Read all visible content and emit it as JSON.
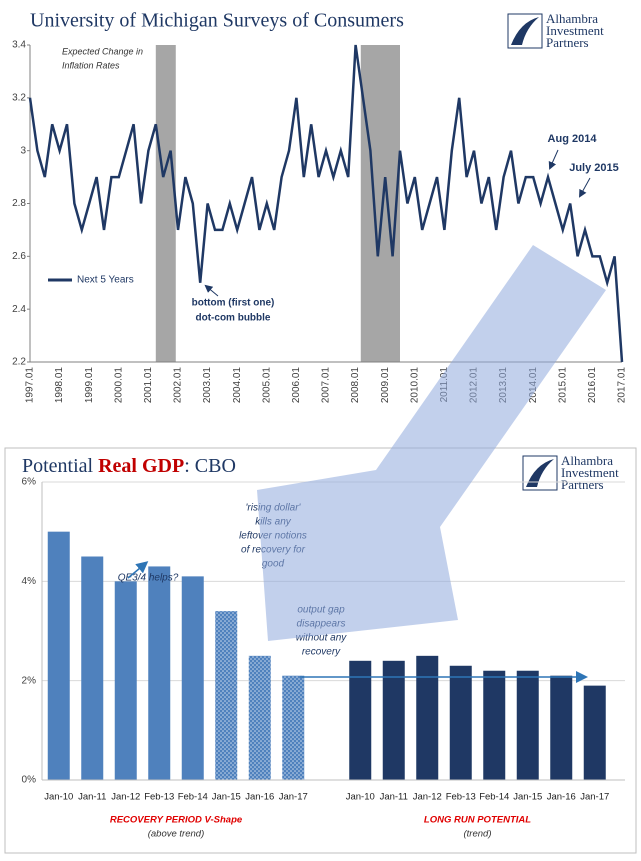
{
  "chart_data": [
    {
      "type": "line",
      "title": "University of Michigan Surveys of Consumers",
      "logo": [
        "Alhambra",
        "Investment",
        "Partners"
      ],
      "annotations": [
        "Expected Change in",
        "Inflation Rates",
        "bottom (first one)",
        "dot-com bubble",
        "Aug 2014",
        "July 2015"
      ],
      "categories": [
        "1997.01",
        null,
        null,
        null,
        "1998.01",
        null,
        null,
        null,
        "1999.01",
        null,
        null,
        null,
        "2000.01",
        null,
        null,
        null,
        "2001.01",
        null,
        null,
        null,
        "2002.01",
        null,
        null,
        null,
        "2003.01",
        null,
        null,
        null,
        "2004.01",
        null,
        null,
        null,
        "2005.01",
        null,
        null,
        null,
        "2006.01",
        null,
        null,
        null,
        "2007.01",
        null,
        null,
        null,
        "2008.01",
        null,
        null,
        null,
        "2009.01",
        null,
        null,
        null,
        "2010.01",
        null,
        null,
        null,
        "2011.01",
        null,
        null,
        null,
        "2012.01",
        null,
        null,
        null,
        "2013.01",
        null,
        null,
        null,
        "2014.01",
        null,
        null,
        null,
        "2015.01",
        null,
        null,
        null,
        "2016.01",
        null,
        null,
        null,
        "2017.01"
      ],
      "series": [
        {
          "name": "Next 5 Years",
          "color": "#1f3864",
          "values": [
            3.2,
            3.0,
            2.9,
            3.1,
            3.0,
            3.1,
            2.8,
            2.7,
            2.8,
            2.9,
            2.7,
            2.9,
            2.9,
            3.0,
            3.1,
            2.8,
            3.0,
            3.1,
            2.9,
            3.0,
            2.7,
            2.9,
            2.8,
            2.5,
            2.8,
            2.7,
            2.7,
            2.8,
            2.7,
            2.8,
            2.9,
            2.7,
            2.8,
            2.7,
            2.9,
            3.0,
            3.2,
            2.9,
            3.1,
            2.9,
            3.0,
            2.9,
            3.0,
            2.9,
            3.4,
            3.2,
            3.0,
            2.6,
            2.9,
            2.6,
            3.0,
            2.8,
            2.9,
            2.7,
            2.8,
            2.9,
            2.7,
            3.0,
            3.2,
            2.9,
            3.0,
            2.8,
            2.9,
            2.7,
            2.9,
            3.0,
            2.8,
            2.9,
            2.9,
            2.8,
            2.9,
            2.8,
            2.7,
            2.8,
            2.6,
            2.7,
            2.6,
            2.6,
            2.5,
            2.6,
            2.2
          ]
        }
      ],
      "shaded_index_ranges": [
        [
          17,
          19.7
        ],
        [
          44.7,
          50
        ]
      ],
      "shade_color": "#a6a6a6",
      "ylim": [
        2.2,
        3.4
      ],
      "yticks": [
        2.2,
        2.4,
        2.6,
        2.8,
        3.0,
        3.2,
        3.4
      ]
    },
    {
      "type": "bar",
      "title": [
        "Potential ",
        "Real GDP",
        ": CBO"
      ],
      "logo": [
        "Alhambra",
        "Investment",
        "Partners"
      ],
      "annotations": [
        [
          "QE3/4 helps?"
        ],
        [
          "'rising dollar'",
          "kills any",
          "leftover notions",
          "of recovery for",
          "good"
        ],
        [
          "output gap",
          "disappears",
          "without any",
          "recovery"
        ]
      ],
      "groups": [
        {
          "label": "RECOVERY PERIOD V-Shape",
          "sublabel": "(above trend)",
          "color": "#4f81bd",
          "categories": [
            "Jan-10",
            "Jan-11",
            "Jan-12",
            "Feb-13",
            "Feb-14",
            "Jan-15",
            "Jan-16",
            "Jan-17"
          ],
          "values": [
            5.0,
            4.5,
            4.0,
            4.3,
            4.1,
            3.4,
            2.5,
            2.1
          ],
          "dotted": [
            false,
            false,
            false,
            false,
            false,
            true,
            true,
            true
          ]
        },
        {
          "label": "LONG RUN POTENTIAL",
          "sublabel": "(trend)",
          "color": "#1f3864",
          "categories": [
            "Jan-10",
            "Jan-11",
            "Jan-12",
            "Feb-13",
            "Feb-14",
            "Jan-15",
            "Jan-16",
            "Jan-17"
          ],
          "values": [
            2.4,
            2.4,
            2.5,
            2.3,
            2.2,
            2.2,
            2.1,
            1.9
          ],
          "dotted": [
            false,
            false,
            false,
            false,
            false,
            false,
            false,
            false
          ]
        }
      ],
      "ylim": [
        0,
        6
      ],
      "yticks": [
        {
          "value": 0,
          "label": "0%"
        },
        {
          "value": 2,
          "label": "2%"
        },
        {
          "value": 4,
          "label": "4%"
        },
        {
          "value": 6,
          "label": "6%"
        }
      ],
      "grid": true,
      "grid_color": "#d9d9d9"
    }
  ]
}
